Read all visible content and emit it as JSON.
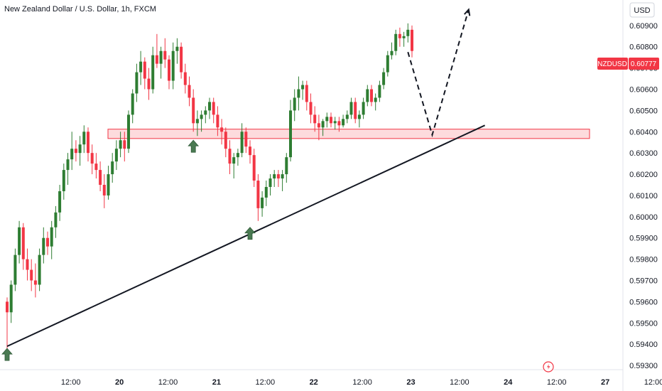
{
  "header": {
    "symbol_title": "New Zealand Dollar / U.S. Dollar, 1h, FXCM"
  },
  "currency_button": {
    "label": "USD"
  },
  "price_badge": {
    "symbol": "NZDUSD",
    "price": "0.60777",
    "colors": {
      "symbol_bg": "#f23645",
      "price_bg": "#f23645",
      "text": "#ffffff"
    }
  },
  "colors": {
    "up": "#2e7d32",
    "down": "#f23645",
    "zone_fill": "rgba(242,54,69,0.18)",
    "zone_stroke": "#f23645",
    "trendline": "#131722",
    "projection": "#131722",
    "arrow": "#4a7a52"
  },
  "events_icon": "lightning-event-icon",
  "chart_data": {
    "type": "candlestick",
    "y_axis": {
      "ticks": [
        "0.60900",
        "0.60800",
        "0.60700",
        "0.60600",
        "0.60500",
        "0.60400",
        "0.60300",
        "0.60200",
        "0.60100",
        "0.60000",
        "0.59900",
        "0.59800",
        "0.59700",
        "0.59600",
        "0.59500",
        "0.59400",
        "0.59300"
      ],
      "ylim": [
        0.5928,
        0.6102
      ]
    },
    "x_axis": {
      "ticks": [
        {
          "label": "12:00",
          "bold": false,
          "index": 11
        },
        {
          "label": "20",
          "bold": true,
          "index": 23
        },
        {
          "label": "12:00",
          "bold": false,
          "index": 35
        },
        {
          "label": "21",
          "bold": true,
          "index": 47
        },
        {
          "label": "12:00",
          "bold": false,
          "index": 59
        },
        {
          "label": "22",
          "bold": true,
          "index": 71
        },
        {
          "label": "12:00",
          "bold": false,
          "index": 83
        },
        {
          "label": "23",
          "bold": true,
          "index": 95
        },
        {
          "label": "12:00",
          "bold": false,
          "index": 107
        },
        {
          "label": "24",
          "bold": true,
          "index": 119
        },
        {
          "label": "12:00",
          "bold": false,
          "index": 131
        },
        {
          "label": "27",
          "bold": true,
          "index": 143
        },
        {
          "label": "12:00",
          "bold": false,
          "index": 155
        }
      ]
    },
    "ohlc": [
      [
        0.596,
        0.5962,
        0.5938,
        0.5955
      ],
      [
        0.5955,
        0.597,
        0.595,
        0.5968
      ],
      [
        0.5968,
        0.5985,
        0.5965,
        0.5982
      ],
      [
        0.5982,
        0.5998,
        0.5978,
        0.5995
      ],
      [
        0.5995,
        0.5997,
        0.5975,
        0.598
      ],
      [
        0.598,
        0.5985,
        0.597,
        0.5975
      ],
      [
        0.5975,
        0.598,
        0.5965,
        0.597
      ],
      [
        0.597,
        0.5978,
        0.5962,
        0.5968
      ],
      [
        0.5968,
        0.5985,
        0.5965,
        0.5982
      ],
      [
        0.5982,
        0.5995,
        0.5978,
        0.599
      ],
      [
        0.599,
        0.5993,
        0.5982,
        0.5986
      ],
      [
        0.5986,
        0.5998,
        0.598,
        0.5995
      ],
      [
        0.5995,
        0.6005,
        0.599,
        0.6002
      ],
      [
        0.6002,
        0.6015,
        0.5998,
        0.6012
      ],
      [
        0.6012,
        0.6025,
        0.6008,
        0.6022
      ],
      [
        0.6022,
        0.603,
        0.6015,
        0.6027
      ],
      [
        0.6027,
        0.604,
        0.6022,
        0.6032
      ],
      [
        0.6032,
        0.6036,
        0.6026,
        0.603
      ],
      [
        0.603,
        0.6038,
        0.6024,
        0.6034
      ],
      [
        0.6034,
        0.6043,
        0.603,
        0.604
      ],
      [
        0.604,
        0.6042,
        0.6026,
        0.603
      ],
      [
        0.603,
        0.6034,
        0.602,
        0.6025
      ],
      [
        0.6025,
        0.603,
        0.6018,
        0.6022
      ],
      [
        0.6022,
        0.6026,
        0.6012,
        0.6015
      ],
      [
        0.6015,
        0.602,
        0.6004,
        0.601
      ],
      [
        0.601,
        0.6024,
        0.6008,
        0.602
      ],
      [
        0.602,
        0.603,
        0.6016,
        0.6026
      ],
      [
        0.6026,
        0.6036,
        0.6022,
        0.6032
      ],
      [
        0.6032,
        0.604,
        0.6028,
        0.6036
      ],
      [
        0.6036,
        0.604,
        0.6026,
        0.6032
      ],
      [
        0.6032,
        0.605,
        0.603,
        0.6048
      ],
      [
        0.6048,
        0.606,
        0.6044,
        0.6058
      ],
      [
        0.6058,
        0.6072,
        0.6054,
        0.6068
      ],
      [
        0.6068,
        0.6078,
        0.6062,
        0.6073
      ],
      [
        0.6073,
        0.6075,
        0.606,
        0.6065
      ],
      [
        0.6065,
        0.607,
        0.6055,
        0.606
      ],
      [
        0.606,
        0.608,
        0.6058,
        0.6076
      ],
      [
        0.6076,
        0.6086,
        0.607,
        0.6072
      ],
      [
        0.6072,
        0.608,
        0.6065,
        0.6078
      ],
      [
        0.6078,
        0.6084,
        0.607,
        0.6074
      ],
      [
        0.6074,
        0.6076,
        0.606,
        0.6064
      ],
      [
        0.6064,
        0.6082,
        0.606,
        0.6078
      ],
      [
        0.6078,
        0.6084,
        0.6072,
        0.608
      ],
      [
        0.608,
        0.6082,
        0.6065,
        0.6068
      ],
      [
        0.6068,
        0.6072,
        0.6058,
        0.6062
      ],
      [
        0.6062,
        0.6066,
        0.6052,
        0.6056
      ],
      [
        0.6056,
        0.606,
        0.604,
        0.6044
      ],
      [
        0.6044,
        0.605,
        0.6038,
        0.6046
      ],
      [
        0.6046,
        0.605,
        0.604,
        0.6048
      ],
      [
        0.6048,
        0.6052,
        0.6044,
        0.605
      ],
      [
        0.605,
        0.6056,
        0.6046,
        0.6054
      ],
      [
        0.6054,
        0.6056,
        0.6044,
        0.6048
      ],
      [
        0.6048,
        0.6052,
        0.6038,
        0.6042
      ],
      [
        0.6042,
        0.6046,
        0.6034,
        0.604
      ],
      [
        0.604,
        0.6042,
        0.6028,
        0.6032
      ],
      [
        0.6032,
        0.6036,
        0.602,
        0.6025
      ],
      [
        0.6025,
        0.603,
        0.6018,
        0.6028
      ],
      [
        0.6028,
        0.6032,
        0.6024,
        0.603
      ],
      [
        0.603,
        0.6044,
        0.6028,
        0.604
      ],
      [
        0.604,
        0.6042,
        0.603,
        0.6033
      ],
      [
        0.6033,
        0.6036,
        0.6025,
        0.6029
      ],
      [
        0.6029,
        0.6032,
        0.6014,
        0.6017
      ],
      [
        0.6017,
        0.602,
        0.5998,
        0.6004
      ],
      [
        0.6004,
        0.6012,
        0.6,
        0.6009
      ],
      [
        0.6009,
        0.6017,
        0.6005,
        0.6014
      ],
      [
        0.6014,
        0.602,
        0.601,
        0.6018
      ],
      [
        0.6018,
        0.6022,
        0.6014,
        0.602
      ],
      [
        0.602,
        0.6022,
        0.6014,
        0.6018
      ],
      [
        0.6018,
        0.6022,
        0.6012,
        0.602
      ],
      [
        0.602,
        0.603,
        0.6016,
        0.6028
      ],
      [
        0.6028,
        0.6055,
        0.6026,
        0.605
      ],
      [
        0.605,
        0.606,
        0.6045,
        0.6056
      ],
      [
        0.6056,
        0.6066,
        0.605,
        0.606
      ],
      [
        0.606,
        0.6064,
        0.6055,
        0.6062
      ],
      [
        0.6062,
        0.6064,
        0.605,
        0.6054
      ],
      [
        0.6054,
        0.6058,
        0.6044,
        0.6048
      ],
      [
        0.6048,
        0.6052,
        0.604,
        0.6044
      ],
      [
        0.6044,
        0.6048,
        0.6036,
        0.6042
      ],
      [
        0.6042,
        0.6046,
        0.6038,
        0.6045
      ],
      [
        0.6045,
        0.6049,
        0.6042,
        0.6047
      ],
      [
        0.6047,
        0.6049,
        0.6042,
        0.6044
      ],
      [
        0.6044,
        0.6047,
        0.6041,
        0.6045
      ],
      [
        0.6045,
        0.6047,
        0.604,
        0.6043
      ],
      [
        0.6043,
        0.6048,
        0.6042,
        0.6046
      ],
      [
        0.6046,
        0.605,
        0.6044,
        0.6048
      ],
      [
        0.6048,
        0.6056,
        0.6046,
        0.6054
      ],
      [
        0.6054,
        0.6056,
        0.6044,
        0.6046
      ],
      [
        0.6046,
        0.605,
        0.6042,
        0.6048
      ],
      [
        0.6048,
        0.6056,
        0.6046,
        0.6054
      ],
      [
        0.6054,
        0.6062,
        0.6052,
        0.606
      ],
      [
        0.606,
        0.6062,
        0.6052,
        0.6054
      ],
      [
        0.6054,
        0.6058,
        0.605,
        0.6056
      ],
      [
        0.6056,
        0.6064,
        0.6054,
        0.6062
      ],
      [
        0.6062,
        0.607,
        0.606,
        0.6068
      ],
      [
        0.6068,
        0.6078,
        0.6066,
        0.6076
      ],
      [
        0.6076,
        0.6082,
        0.6074,
        0.6078
      ],
      [
        0.6078,
        0.6088,
        0.6076,
        0.6086
      ],
      [
        0.6086,
        0.6089,
        0.608,
        0.6084
      ],
      [
        0.6084,
        0.6087,
        0.608,
        0.6085
      ],
      [
        0.6085,
        0.6091,
        0.6082,
        0.6088
      ],
      [
        0.6088,
        0.609,
        0.6075,
        0.6078
      ]
    ],
    "support_zone": {
      "from": 0.60368,
      "to": 0.60412
    },
    "trendline": {
      "x": [
        0,
        118
      ],
      "y": [
        0.5939,
        0.6043
      ]
    },
    "projection_path": {
      "x": [
        99,
        105,
        114
      ],
      "y": [
        0.60775,
        0.60385,
        0.60975
      ]
    },
    "bounce_arrows": [
      {
        "x": 0,
        "y": 0.5939
      },
      {
        "x": 46,
        "y": 0.6037
      },
      {
        "x": 60,
        "y": 0.5996
      }
    ]
  }
}
